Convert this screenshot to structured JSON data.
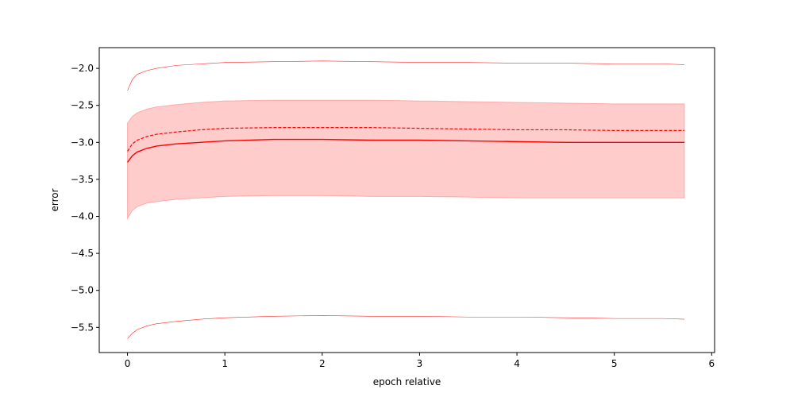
{
  "chart_data": {
    "type": "line",
    "title": "",
    "xlabel": "epoch relative",
    "ylabel": "error",
    "xlim": [
      -0.29,
      6.03
    ],
    "ylim": [
      -5.84,
      -1.72
    ],
    "xticks": [
      0,
      1,
      2,
      3,
      4,
      5,
      6
    ],
    "xtick_labels": [
      "0",
      "1",
      "2",
      "3",
      "4",
      "5",
      "6"
    ],
    "yticks": [
      -5.5,
      -5.0,
      -4.5,
      -4.0,
      -3.5,
      -3.0,
      -2.5,
      -2.0
    ],
    "ytick_labels": [
      "−5.5",
      "−5.0",
      "−4.5",
      "−4.0",
      "−3.5",
      "−3.0",
      "−2.5",
      "−2.0"
    ],
    "grid": false,
    "legend": "none",
    "colors": {
      "series": "#ff0000",
      "band_fill": "#ff0000",
      "band_alpha": 0.2
    },
    "x": [
      0,
      0.05,
      0.1,
      0.2,
      0.3,
      0.5,
      0.75,
      1.0,
      1.5,
      2.0,
      2.5,
      3.0,
      3.5,
      4.0,
      4.5,
      5.0,
      5.5,
      5.72
    ],
    "series": [
      {
        "role": "solid-line",
        "style": "solid",
        "values": [
          -3.27,
          -3.18,
          -3.13,
          -3.08,
          -3.05,
          -3.02,
          -3.0,
          -2.98,
          -2.96,
          -2.96,
          -2.97,
          -2.97,
          -2.98,
          -2.99,
          -3.0,
          -3.0,
          -3.0,
          -3.0
        ]
      },
      {
        "role": "dashed-line",
        "style": "dashed",
        "values": [
          -3.12,
          -3.02,
          -2.97,
          -2.92,
          -2.89,
          -2.86,
          -2.83,
          -2.81,
          -2.8,
          -2.8,
          -2.8,
          -2.81,
          -2.82,
          -2.83,
          -2.83,
          -2.84,
          -2.84,
          -2.84
        ]
      },
      {
        "role": "upper-thin-line",
        "style": "thin",
        "values": [
          -2.3,
          -2.15,
          -2.08,
          -2.03,
          -2.0,
          -1.96,
          -1.94,
          -1.92,
          -1.91,
          -1.9,
          -1.91,
          -1.92,
          -1.92,
          -1.93,
          -1.93,
          -1.94,
          -1.94,
          -1.95
        ]
      },
      {
        "role": "lower-thin-line",
        "style": "thin",
        "values": [
          -5.65,
          -5.58,
          -5.53,
          -5.48,
          -5.45,
          -5.42,
          -5.39,
          -5.37,
          -5.35,
          -5.34,
          -5.35,
          -5.35,
          -5.36,
          -5.36,
          -5.37,
          -5.38,
          -5.38,
          -5.39
        ]
      }
    ],
    "band": {
      "upper": [
        -2.74,
        -2.65,
        -2.6,
        -2.55,
        -2.52,
        -2.49,
        -2.46,
        -2.44,
        -2.43,
        -2.43,
        -2.43,
        -2.44,
        -2.45,
        -2.46,
        -2.47,
        -2.48,
        -2.48,
        -2.48
      ],
      "lower": [
        -4.03,
        -3.92,
        -3.87,
        -3.82,
        -3.8,
        -3.77,
        -3.75,
        -3.73,
        -3.72,
        -3.72,
        -3.73,
        -3.73,
        -3.74,
        -3.75,
        -3.75,
        -3.75,
        -3.75,
        -3.75
      ]
    }
  }
}
